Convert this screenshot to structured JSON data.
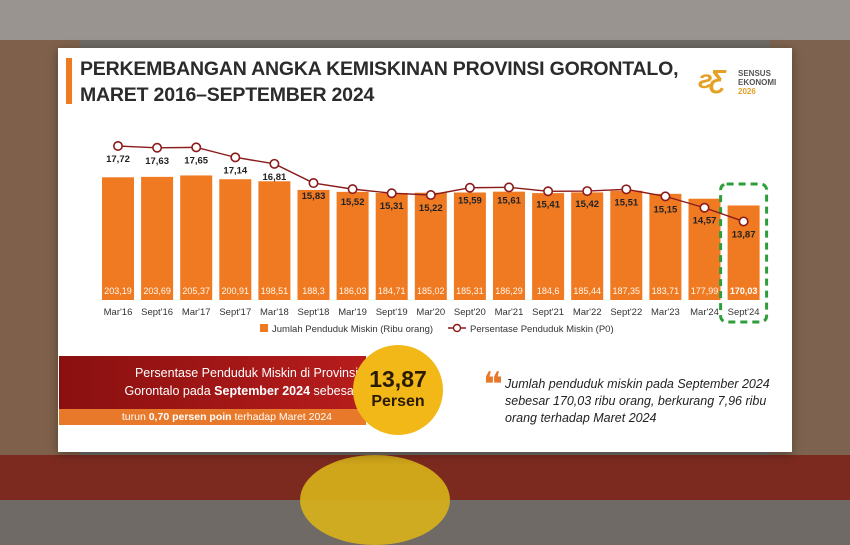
{
  "slide": {
    "title_line1": "PERKEMBANGAN ANGKA KEMISKINAN PROVINSI GORONTALO,",
    "title_line2": "MARET 2016–SEPTEMBER 2024",
    "logo_line1": "SENSUS",
    "logo_line2": "EKONOMI",
    "logo_line3": "2026",
    "accent_color": "#f07a22",
    "highlight_color": "#2e9e3a"
  },
  "chart_data": {
    "type": "bar",
    "categories": [
      "Mar'16",
      "Sept'16",
      "Mar'17",
      "Sept'17",
      "Mar'18",
      "Sept'18",
      "Mar'19",
      "Sept'19",
      "Mar'20",
      "Sept'20",
      "Mar'21",
      "Sept'21",
      "Mar'22",
      "Sept'22",
      "Mar'23",
      "Mar'24",
      "Sept'24"
    ],
    "series": [
      {
        "name": "Jumlah Penduduk Miskin (Ribu orang)",
        "type": "bar",
        "color": "#f07a22",
        "values": [
          203.19,
          203.69,
          205.37,
          200.91,
          198.51,
          188.3,
          186.03,
          184.71,
          185.02,
          185.31,
          186.29,
          184.6,
          185.44,
          187.35,
          183.71,
          177.99,
          170.03
        ],
        "labels": [
          "203,19",
          "203,69",
          "205,37",
          "200,91",
          "198,51",
          "188,3",
          "186,03",
          "184,71",
          "185,02",
          "185,31",
          "186,29",
          "184,6",
          "185,44",
          "187,35",
          "183,71",
          "177,99",
          "170,03"
        ]
      },
      {
        "name": "Persentase Penduduk Miskin (P0)",
        "type": "line",
        "color": "#8b1a1a",
        "values": [
          17.72,
          17.63,
          17.65,
          17.14,
          16.81,
          15.83,
          15.52,
          15.31,
          15.22,
          15.59,
          15.61,
          15.41,
          15.42,
          15.51,
          15.15,
          14.57,
          13.87
        ],
        "labels": [
          "17,72",
          "17,63",
          "17,65",
          "17,14",
          "16,81",
          "15,83",
          "15,52",
          "15,31",
          "15,22",
          "15,59",
          "15,61",
          "15,41",
          "15,42",
          "15,51",
          "15,15",
          "14,57",
          "13,87"
        ]
      }
    ],
    "highlight_category": "Sept'24",
    "legend_position": "bottom",
    "grid": false
  },
  "footer": {
    "summary_line1": "Persentase Penduduk Miskin di Provinsi",
    "summary_line2_prefix": "Gorontalo pada ",
    "summary_line2_bold": "September 2024",
    "summary_line2_suffix": " sebesar",
    "strip_prefix": "turun ",
    "strip_bold": "0,70 persen poin",
    "strip_suffix": " terhadap Maret 2024",
    "bubble_value": "13,87",
    "bubble_unit": "Persen",
    "quote": "Jumlah penduduk miskin pada September 2024 sebesar 170,03 ribu orang, berkurang 7,96 ribu orang terhadap Maret 2024",
    "quote_mark": "❝"
  }
}
